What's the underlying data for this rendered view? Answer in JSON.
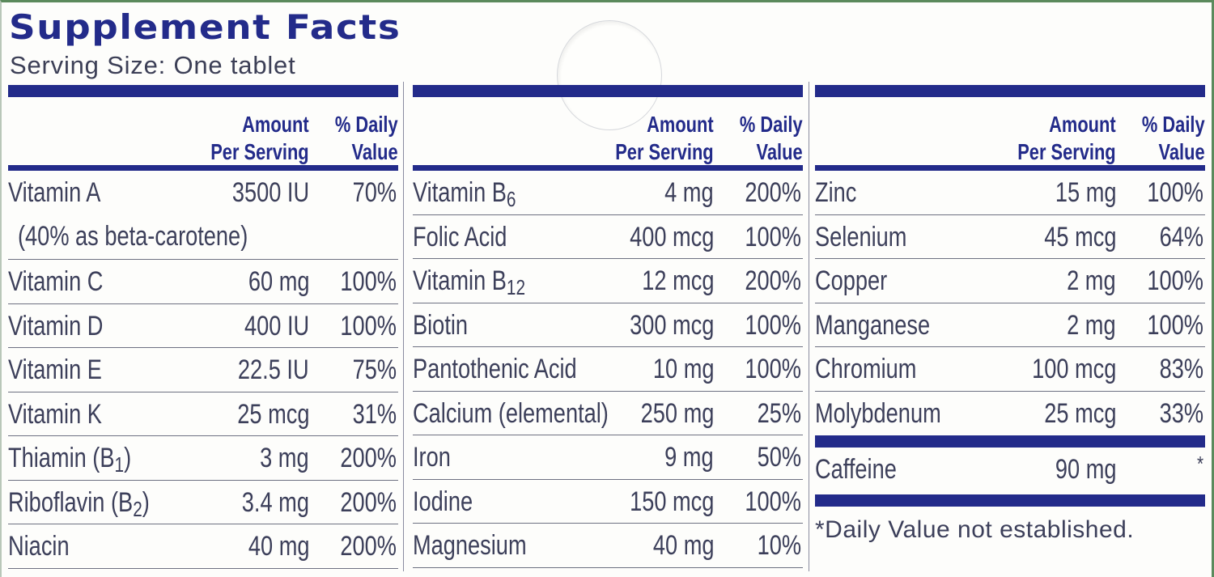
{
  "label": {
    "title": "Supplement Facts",
    "serving_size": "Serving Size: One tablet",
    "header": {
      "amount": "Amount\nPer Serving",
      "daily_value": "% Daily\nValue"
    },
    "colors": {
      "brand_blue": "#232b8a",
      "text": "#3c3f5a",
      "border_green": "#5b8a5c"
    },
    "columns": [
      {
        "rows": [
          {
            "name": "Vitamin A",
            "amount": "3500 IU",
            "dv": "70%",
            "note": "(40% as beta-carotene)"
          },
          {
            "name": "Vitamin C",
            "amount": "60 mg",
            "dv": "100%"
          },
          {
            "name": "Vitamin D",
            "amount": "400 IU",
            "dv": "100%"
          },
          {
            "name": "Vitamin E",
            "amount": "22.5 IU",
            "dv": "75%"
          },
          {
            "name": "Vitamin K",
            "amount": "25 mcg",
            "dv": "31%"
          },
          {
            "name": "Thiamin (B",
            "sub": "1",
            "suffix": ")",
            "amount": "3 mg",
            "dv": "200%"
          },
          {
            "name": "Riboflavin (B",
            "sub": "2",
            "suffix": ")",
            "amount": "3.4 mg",
            "dv": "200%"
          },
          {
            "name": "Niacin",
            "amount": "40 mg",
            "dv": "200%"
          }
        ]
      },
      {
        "rows": [
          {
            "name": "Vitamin B",
            "sub": "6",
            "amount": "4 mg",
            "dv": "200%"
          },
          {
            "name": "Folic Acid",
            "amount": "400 mcg",
            "dv": "100%"
          },
          {
            "name": "Vitamin B",
            "sub": "12",
            "amount": "12 mcg",
            "dv": "200%"
          },
          {
            "name": "Biotin",
            "amount": "300 mcg",
            "dv": "100%"
          },
          {
            "name": "Pantothenic Acid",
            "amount": "10 mg",
            "dv": "100%"
          },
          {
            "name": "Calcium (elemental)",
            "amount": "250 mg",
            "dv": "25%"
          },
          {
            "name": "Iron",
            "amount": "9 mg",
            "dv": "50%"
          },
          {
            "name": "Iodine",
            "amount": "150 mcg",
            "dv": "100%"
          },
          {
            "name": "Magnesium",
            "amount": "40 mg",
            "dv": "10%"
          }
        ]
      },
      {
        "rows": [
          {
            "name": "Zinc",
            "amount": "15 mg",
            "dv": "100%"
          },
          {
            "name": "Selenium",
            "amount": "45 mcg",
            "dv": "64%"
          },
          {
            "name": "Copper",
            "amount": "2 mg",
            "dv": "100%"
          },
          {
            "name": "Manganese",
            "amount": "2 mg",
            "dv": "100%"
          },
          {
            "name": "Chromium",
            "amount": "100 mcg",
            "dv": "83%"
          },
          {
            "name": "Molybdenum",
            "amount": "25 mcg",
            "dv": "33%"
          }
        ],
        "caffeine": {
          "name": "Caffeine",
          "amount": "90 mg",
          "dv": "*"
        },
        "footnote": "*Daily Value not established."
      }
    ]
  }
}
